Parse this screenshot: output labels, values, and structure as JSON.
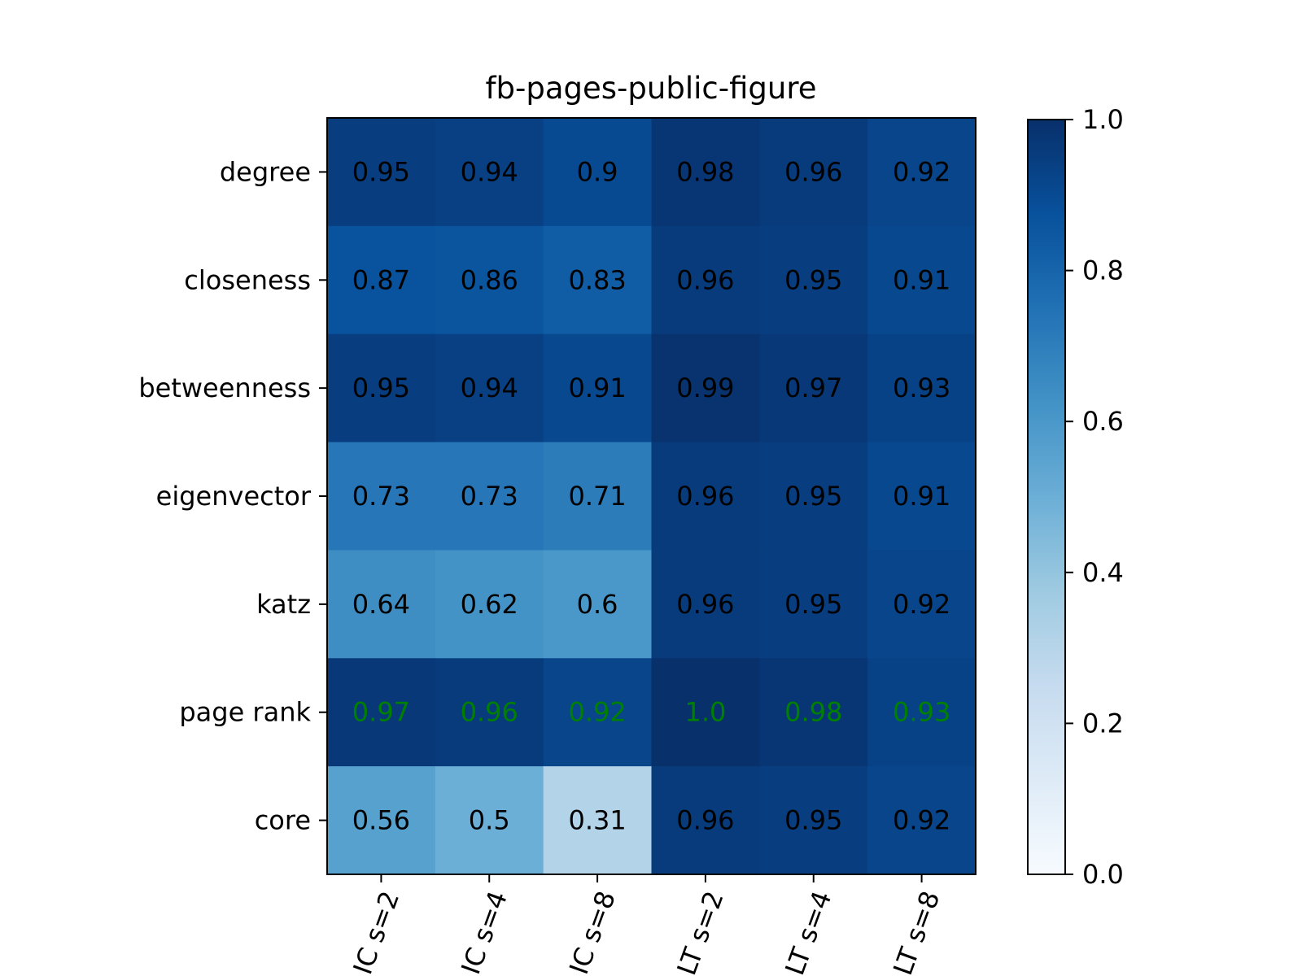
{
  "chart_data": {
    "type": "heatmap",
    "title": "fb-pages-public-figure",
    "rows": [
      "degree",
      "closeness",
      "betweenness",
      "eigenvector",
      "katz",
      "page rank",
      "core"
    ],
    "columns": [
      "IC s=2",
      "IC s=4",
      "IC s=8",
      "LT s=2",
      "LT s=4",
      "LT s=8"
    ],
    "values": [
      [
        0.95,
        0.94,
        0.9,
        0.98,
        0.96,
        0.92
      ],
      [
        0.87,
        0.86,
        0.83,
        0.96,
        0.95,
        0.91
      ],
      [
        0.95,
        0.94,
        0.91,
        0.99,
        0.97,
        0.93
      ],
      [
        0.73,
        0.73,
        0.71,
        0.96,
        0.95,
        0.91
      ],
      [
        0.64,
        0.62,
        0.6,
        0.96,
        0.95,
        0.92
      ],
      [
        0.97,
        0.96,
        0.92,
        1.0,
        0.98,
        0.93
      ],
      [
        0.56,
        0.5,
        0.31,
        0.96,
        0.95,
        0.92
      ]
    ],
    "cell_labels": [
      [
        "0.95",
        "0.94",
        "0.9",
        "0.98",
        "0.96",
        "0.92"
      ],
      [
        "0.87",
        "0.86",
        "0.83",
        "0.96",
        "0.95",
        "0.91"
      ],
      [
        "0.95",
        "0.94",
        "0.91",
        "0.99",
        "0.97",
        "0.93"
      ],
      [
        "0.73",
        "0.73",
        "0.71",
        "0.96",
        "0.95",
        "0.91"
      ],
      [
        "0.64",
        "0.62",
        "0.6",
        "0.96",
        "0.95",
        "0.92"
      ],
      [
        "0.97",
        "0.96",
        "0.92",
        "1.0",
        "0.98",
        "0.93"
      ],
      [
        "0.56",
        "0.5",
        "0.31",
        "0.96",
        "0.95",
        "0.92"
      ]
    ],
    "highlight_row": "page rank",
    "highlight_color": "#008000",
    "colormap": "Blues",
    "colorbar": {
      "range": [
        0.0,
        1.0
      ],
      "ticks": [
        "0.0",
        "0.2",
        "0.4",
        "0.6",
        "0.8",
        "1.0"
      ]
    },
    "xtick_rotation": -70
  }
}
